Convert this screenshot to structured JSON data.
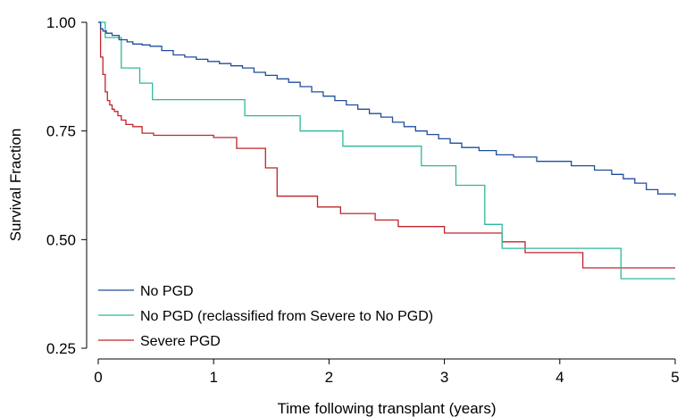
{
  "chart_data": {
    "type": "line",
    "xlabel": "Time following transplant (years)",
    "ylabel": "Survival Fraction",
    "xlim": [
      0,
      5
    ],
    "ylim": [
      0.25,
      1.0
    ],
    "xticks": [
      0,
      1,
      2,
      3,
      4,
      5
    ],
    "xtick_labels": [
      "0",
      "1",
      "2",
      "3",
      "4",
      "5"
    ],
    "yticks": [
      0.25,
      0.5,
      0.75,
      1.0
    ],
    "ytick_labels": [
      "0.25",
      "0.50",
      "0.75",
      "1.00"
    ],
    "grid": false,
    "legend_position": "bottom-left",
    "series": [
      {
        "name": "No PGD",
        "color": "#1f4e9c",
        "step": true,
        "x": [
          0,
          0.02,
          0.04,
          0.07,
          0.12,
          0.18,
          0.25,
          0.3,
          0.38,
          0.45,
          0.55,
          0.65,
          0.75,
          0.85,
          0.95,
          1.05,
          1.15,
          1.25,
          1.35,
          1.45,
          1.55,
          1.65,
          1.75,
          1.85,
          1.95,
          2.05,
          2.15,
          2.25,
          2.35,
          2.45,
          2.55,
          2.65,
          2.75,
          2.85,
          2.95,
          3.05,
          3.15,
          3.3,
          3.45,
          3.6,
          3.8,
          4.1,
          4.2,
          4.3,
          4.45,
          4.55,
          4.65,
          4.75,
          4.85,
          5.0
        ],
        "y": [
          1.0,
          0.985,
          0.98,
          0.975,
          0.97,
          0.96,
          0.955,
          0.95,
          0.948,
          0.945,
          0.935,
          0.925,
          0.92,
          0.915,
          0.91,
          0.905,
          0.9,
          0.895,
          0.885,
          0.878,
          0.87,
          0.862,
          0.852,
          0.84,
          0.83,
          0.82,
          0.81,
          0.8,
          0.79,
          0.782,
          0.77,
          0.76,
          0.75,
          0.742,
          0.732,
          0.722,
          0.712,
          0.705,
          0.695,
          0.69,
          0.68,
          0.67,
          0.67,
          0.66,
          0.65,
          0.64,
          0.63,
          0.615,
          0.605,
          0.6
        ]
      },
      {
        "name": "No PGD (reclassified from Severe to No PGD)",
        "color": "#2fb89a",
        "step": true,
        "x": [
          0,
          0.06,
          0.2,
          0.36,
          0.47,
          1.27,
          1.75,
          2.12,
          2.8,
          3.1,
          3.35,
          3.5,
          4.53,
          5.0
        ],
        "y": [
          1.0,
          0.965,
          0.895,
          0.86,
          0.822,
          0.785,
          0.75,
          0.715,
          0.67,
          0.625,
          0.535,
          0.48,
          0.41,
          0.41
        ]
      },
      {
        "name": "Severe PGD",
        "color": "#c0242b",
        "step": true,
        "x": [
          0,
          0.02,
          0.04,
          0.06,
          0.08,
          0.1,
          0.12,
          0.14,
          0.17,
          0.2,
          0.24,
          0.3,
          0.38,
          0.48,
          1.0,
          1.2,
          1.45,
          1.55,
          1.9,
          2.1,
          2.4,
          2.6,
          3.0,
          3.3,
          3.5,
          3.7,
          4.2,
          5.0
        ],
        "y": [
          1.0,
          0.92,
          0.88,
          0.84,
          0.82,
          0.81,
          0.8,
          0.795,
          0.785,
          0.775,
          0.765,
          0.76,
          0.745,
          0.74,
          0.735,
          0.71,
          0.665,
          0.6,
          0.575,
          0.56,
          0.545,
          0.53,
          0.515,
          0.515,
          0.495,
          0.47,
          0.435,
          0.435
        ]
      }
    ]
  }
}
